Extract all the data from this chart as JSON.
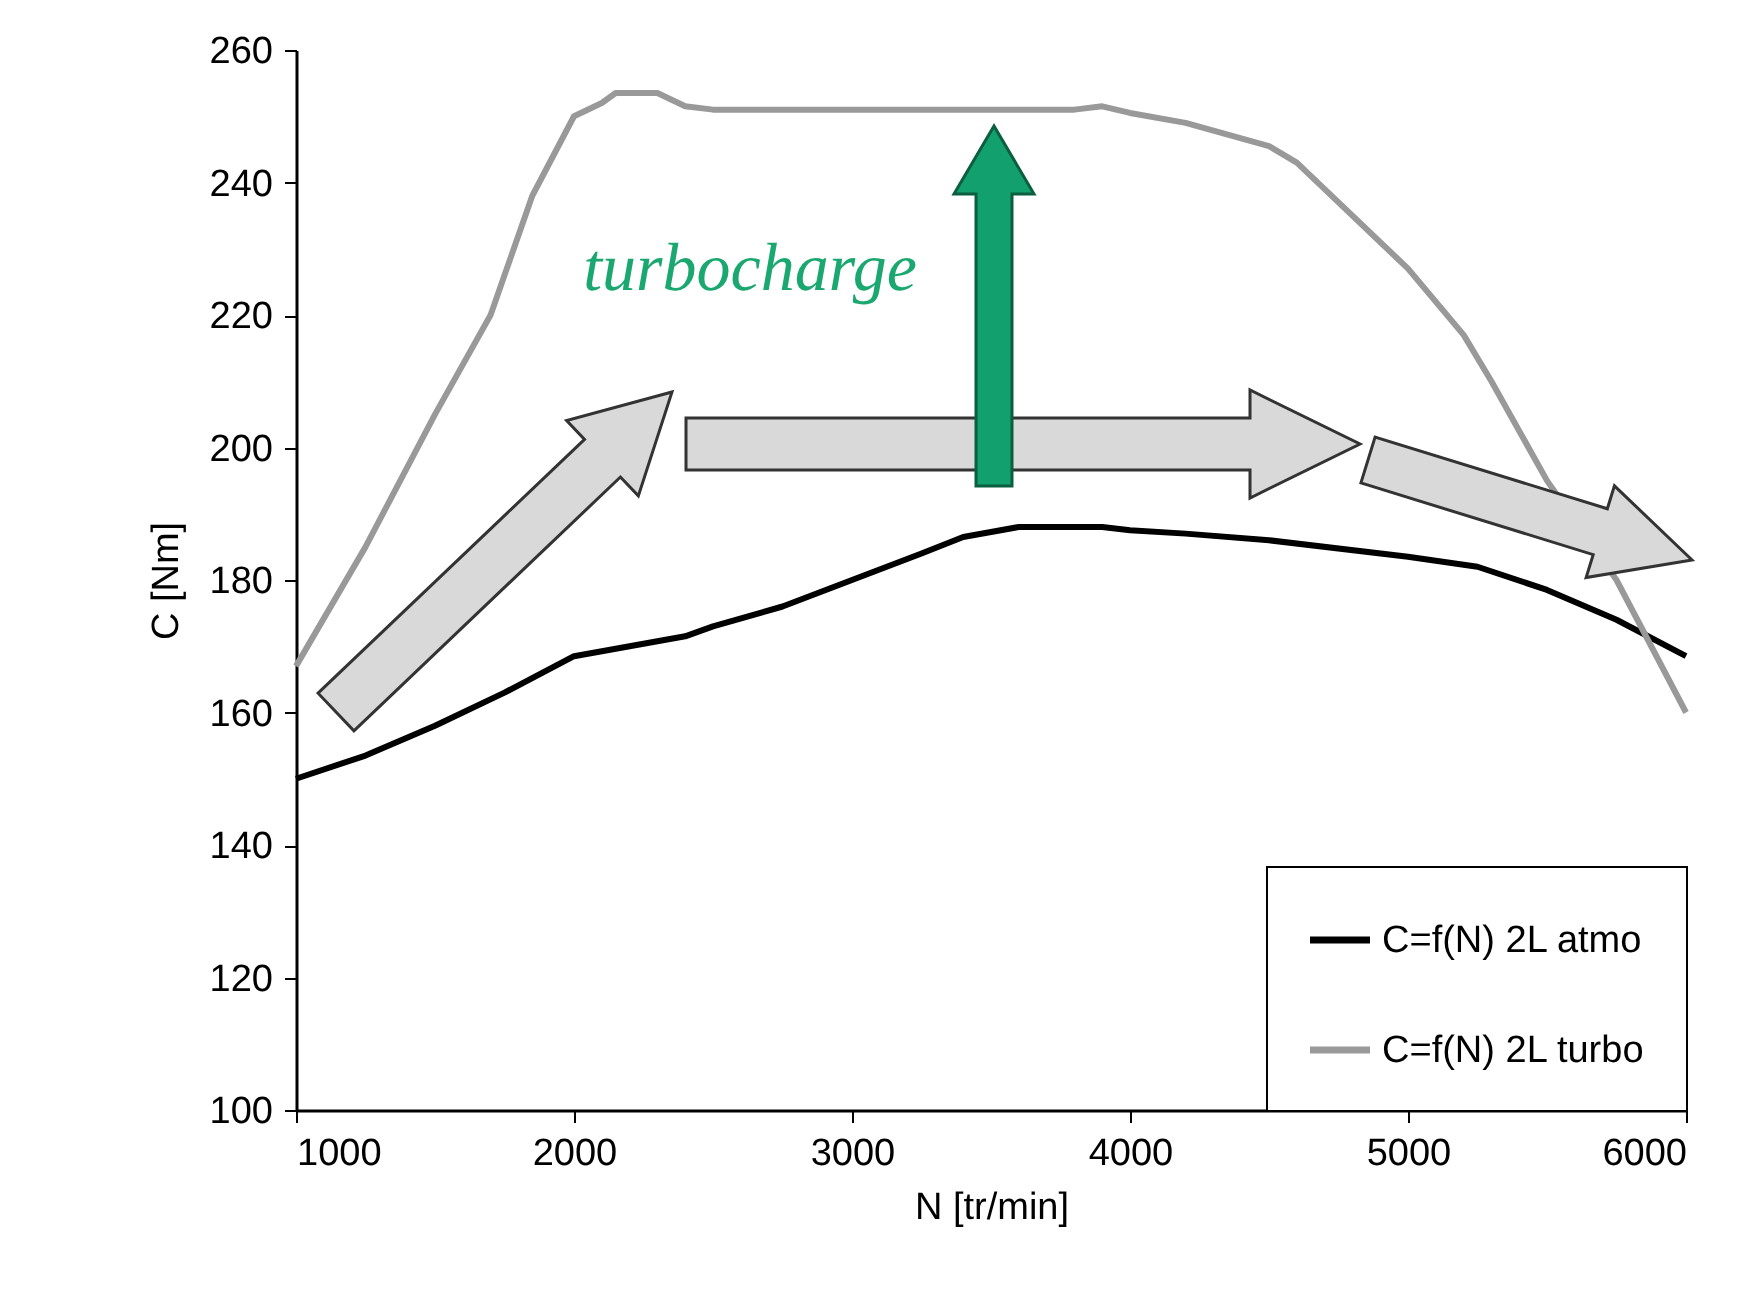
{
  "chart_data": {
    "type": "line",
    "xlabel": "N [tr/min]",
    "ylabel": "C [Nm]",
    "xlim": [
      1000,
      6000
    ],
    "xticks": [
      1000,
      2000,
      3000,
      4000,
      5000,
      6000
    ],
    "ylim": [
      100,
      260
    ],
    "yticks": [
      100,
      120,
      140,
      160,
      180,
      200,
      220,
      240,
      260
    ],
    "grid": false,
    "legend": "bottom right",
    "marker": "none",
    "line_style": "solid",
    "annotations": [
      "turbocharge"
    ],
    "series": [
      {
        "name": "C=f(N) 2L atmo",
        "color": "#000000",
        "x": [
          1000,
          1250,
          1500,
          1750,
          2000,
          2200,
          2400,
          2500,
          2750,
          3000,
          3250,
          3400,
          3600,
          3900,
          4000,
          4200,
          4500,
          5000,
          5250,
          5500,
          5750,
          6000
        ],
        "values": [
          150,
          153.5,
          158,
          163,
          168.5,
          170,
          171.5,
          173,
          176,
          180,
          184,
          186.5,
          188,
          188,
          187.5,
          187,
          186,
          183.5,
          182,
          178.5,
          174,
          168.5
        ]
      },
      {
        "name": "C=f(N) 2L turbo",
        "color": "#999999",
        "x": [
          1000,
          1250,
          1500,
          1700,
          1850,
          2000,
          2100,
          2150,
          2300,
          2400,
          2500,
          3800,
          3900,
          4000,
          4200,
          4500,
          4600,
          4750,
          5000,
          5200,
          5300,
          5500,
          5750,
          6000
        ],
        "values": [
          167,
          185,
          205,
          220,
          238,
          250,
          252,
          253.5,
          253.5,
          251.5,
          251,
          251,
          251.5,
          250.5,
          249,
          245.5,
          243,
          237,
          227,
          217,
          210,
          195,
          180,
          160
        ]
      }
    ]
  }
}
